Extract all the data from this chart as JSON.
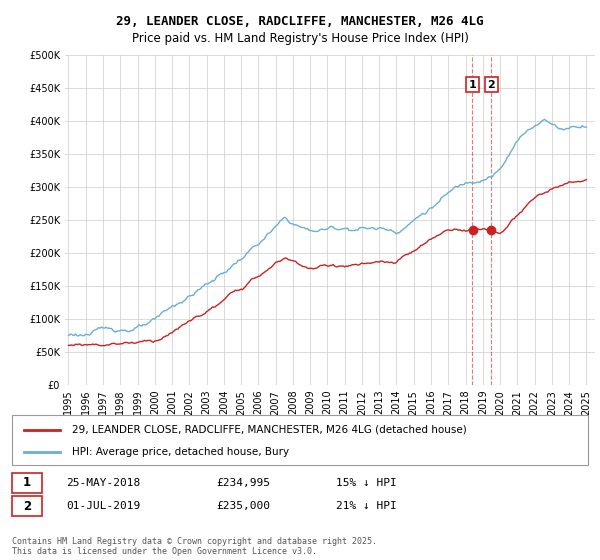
{
  "title_line1": "29, LEANDER CLOSE, RADCLIFFE, MANCHESTER, M26 4LG",
  "title_line2": "Price paid vs. HM Land Registry's House Price Index (HPI)",
  "legend_label1": "29, LEANDER CLOSE, RADCLIFFE, MANCHESTER, M26 4LG (detached house)",
  "legend_label2": "HPI: Average price, detached house, Bury",
  "ann1_date": "25-MAY-2018",
  "ann1_price": "£234,995",
  "ann1_hpi": "15% ↓ HPI",
  "ann2_date": "01-JUL-2019",
  "ann2_price": "£235,000",
  "ann2_hpi": "21% ↓ HPI",
  "footer": "Contains HM Land Registry data © Crown copyright and database right 2025.\nThis data is licensed under the Open Government Licence v3.0.",
  "hpi_color": "#6baed6",
  "price_color": "#cc2222",
  "vline_color": "#cc2222",
  "ylim": [
    0,
    500000
  ],
  "yticks": [
    0,
    50000,
    100000,
    150000,
    200000,
    250000,
    300000,
    350000,
    400000,
    450000,
    500000
  ],
  "sale1_year": 2018.4,
  "sale2_year": 2019.5,
  "sale1_price": 234995,
  "sale2_price": 235000
}
